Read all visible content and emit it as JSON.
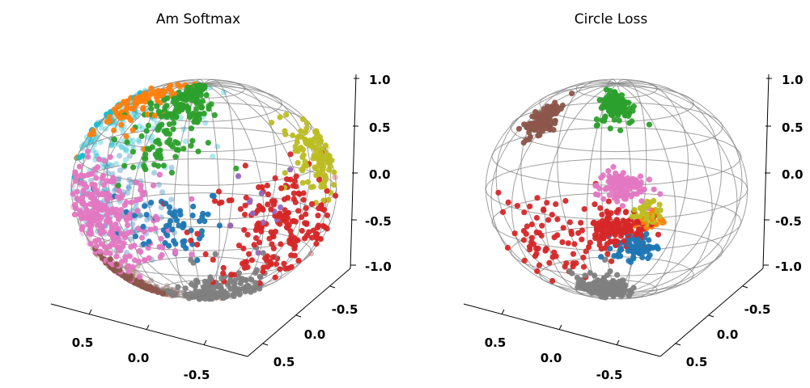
{
  "chart_data": [
    {
      "type": "scatter",
      "projection": "3d-sphere",
      "title": "Am Softmax",
      "z_ticks": [
        "1.0",
        "0.5",
        "0.0",
        "-0.5",
        "-1.0"
      ],
      "x_ticks": [
        "0.5",
        "0.0",
        "-0.5"
      ],
      "y_ticks": [
        "-0.5",
        "0.0",
        "0.5"
      ],
      "xlim": [
        -1,
        1
      ],
      "ylim": [
        -1,
        1
      ],
      "zlim": [
        -1,
        1
      ],
      "sphere_wireframe": true,
      "series": [
        {
          "color": "#1f77b4",
          "center_lon": -2.35,
          "center_lat": -0.35,
          "spread": 0.22,
          "points": 120
        },
        {
          "color": "#1f77b4",
          "center_lon": -0.25,
          "center_lat": -0.05,
          "spread": 0.18,
          "points": 60
        },
        {
          "color": "#ff7f0e",
          "center_lon": -1.3,
          "center_lat": 1.05,
          "spread": 0.22,
          "points": 90
        },
        {
          "color": "#2ca02c",
          "center_lon": -0.4,
          "center_lat": 1.1,
          "spread": 0.25,
          "points": 160
        },
        {
          "color": "#2ca02c",
          "center_lon": -0.4,
          "center_lat": 0.55,
          "spread": 0.12,
          "points": 30
        },
        {
          "color": "#d62728",
          "center_lon": 0.65,
          "center_lat": -0.15,
          "spread": 0.28,
          "points": 190
        },
        {
          "color": "#9467bd",
          "center_lon": 0.5,
          "center_lat": 0.2,
          "spread": 0.2,
          "points": 12
        },
        {
          "color": "#8c564b",
          "center_lon": -1.35,
          "center_lat": -1.0,
          "spread": 0.22,
          "points": 230
        },
        {
          "color": "#e377c2",
          "center_lon": -0.85,
          "center_lat": -0.1,
          "spread": 0.24,
          "points": 260
        },
        {
          "color": "#7f7f7f",
          "center_lon": 0.2,
          "center_lat": -0.95,
          "spread": 0.22,
          "points": 150
        },
        {
          "color": "#bcbd22",
          "center_lon": 1.2,
          "center_lat": 0.4,
          "spread": 0.18,
          "points": 110
        },
        {
          "color": "#17becf",
          "center_lon": -2.35,
          "center_lat": 0.45,
          "spread": 0.28,
          "points": 170
        }
      ]
    },
    {
      "type": "scatter",
      "projection": "3d-sphere",
      "title": "Circle Loss",
      "z_ticks": [
        "1.0",
        "0.5",
        "0.0",
        "-0.5",
        "-1.0"
      ],
      "x_ticks": [
        "0.5",
        "0.0",
        "-0.5"
      ],
      "y_ticks": [
        "-0.5",
        "0.0",
        "0.5"
      ],
      "xlim": [
        -1,
        1
      ],
      "ylim": [
        -1,
        1
      ],
      "zlim": [
        -1,
        1
      ],
      "sphere_wireframe": true,
      "series": [
        {
          "color": "#1f77b4",
          "center_lon": 0.15,
          "center_lat": -0.28,
          "spread": 0.07,
          "points": 80
        },
        {
          "color": "#ff7f0e",
          "center_lon": 0.25,
          "center_lat": -0.03,
          "spread": 0.05,
          "points": 25
        },
        {
          "color": "#2ca02c",
          "center_lon": 0.0,
          "center_lat": 1.15,
          "spread": 0.12,
          "points": 130
        },
        {
          "color": "#d62728",
          "center_lon": 0.0,
          "center_lat": -0.08,
          "spread": 0.1,
          "points": 120
        },
        {
          "color": "#d62728",
          "center_lon": -0.55,
          "center_lat": -0.22,
          "spread": 0.2,
          "points": 80
        },
        {
          "color": "#8c564b",
          "center_lon": -1.05,
          "center_lat": 0.85,
          "spread": 0.1,
          "points": 110
        },
        {
          "color": "#e377c2",
          "center_lon": 0.03,
          "center_lat": 0.3,
          "spread": 0.08,
          "points": 100
        },
        {
          "color": "#7f7f7f",
          "center_lon": -0.15,
          "center_lat": -0.85,
          "spread": 0.12,
          "points": 160
        },
        {
          "color": "#bcbd22",
          "center_lon": 0.25,
          "center_lat": 0.05,
          "spread": 0.05,
          "points": 40
        }
      ]
    }
  ]
}
